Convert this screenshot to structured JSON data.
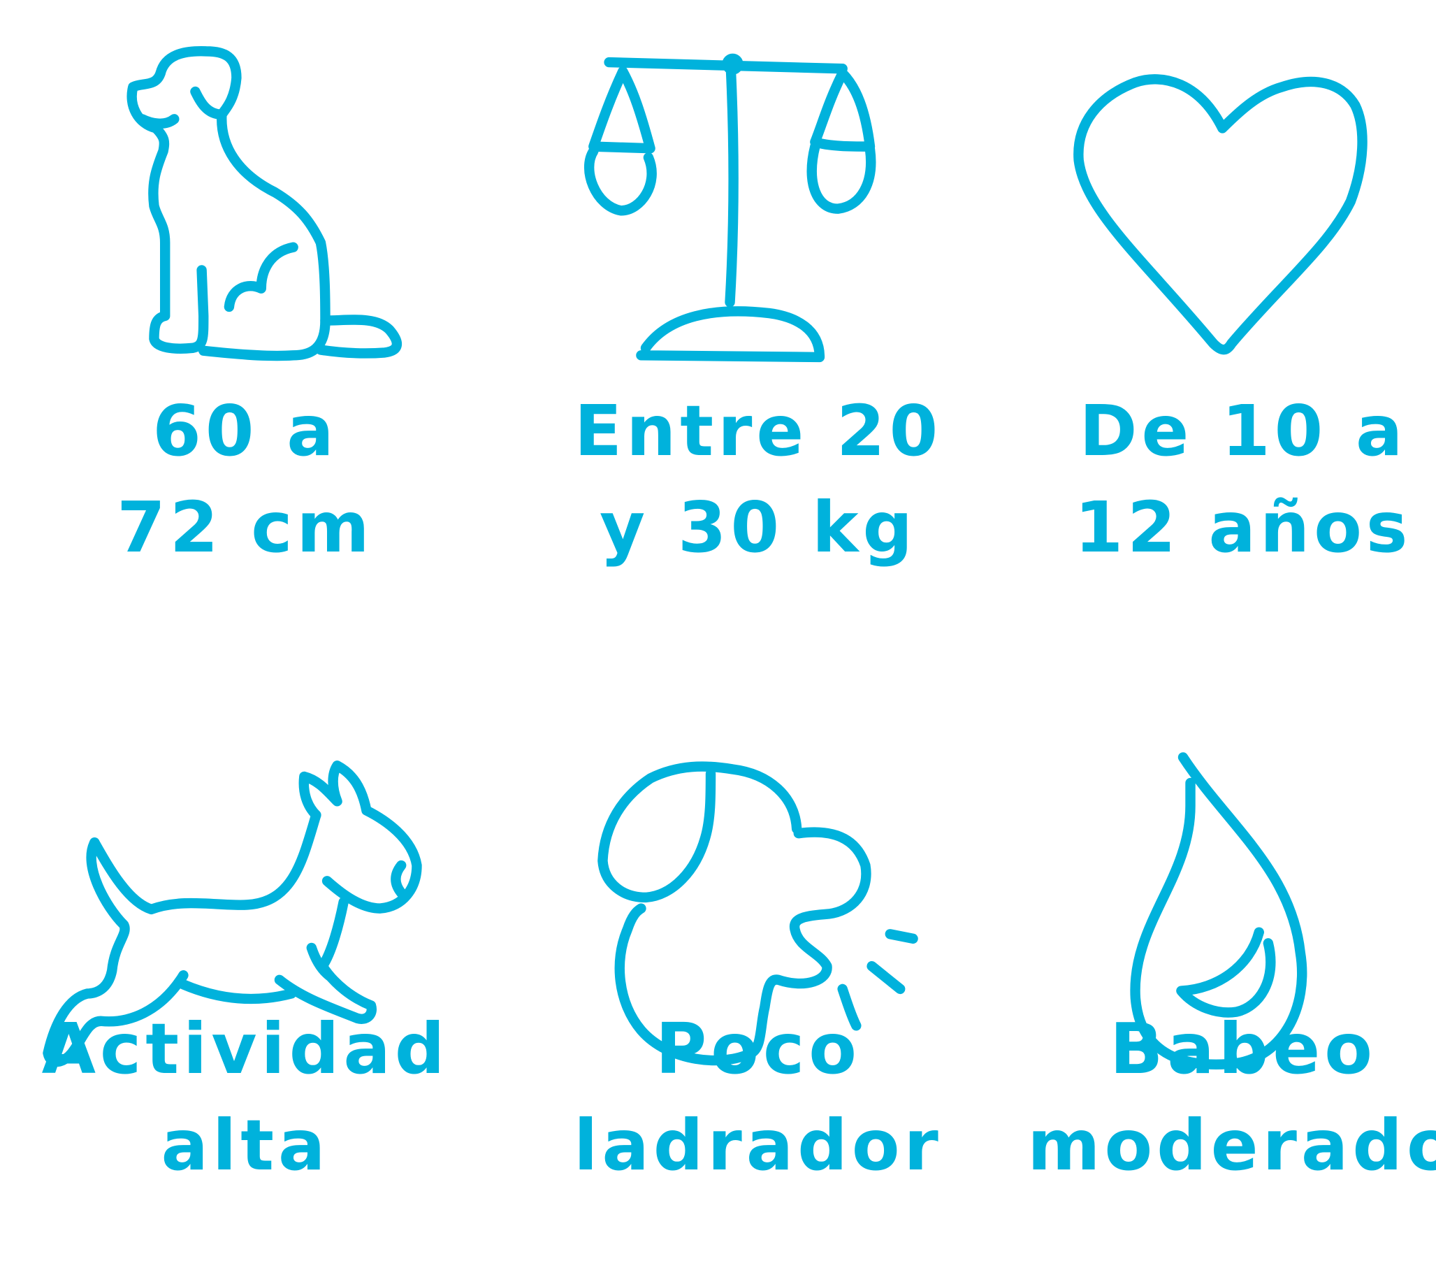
{
  "accent_color": "#00b2dc",
  "items": [
    {
      "icon": "sitting-dog-icon",
      "line1": "60 a",
      "line2": "72 cm"
    },
    {
      "icon": "scale-icon",
      "line1": "Entre 20",
      "line2": "y 30 kg"
    },
    {
      "icon": "heart-icon",
      "line1": "De 10 a",
      "line2": "12 años"
    },
    {
      "icon": "running-dog-icon",
      "line1": "Actividad",
      "line2": "alta"
    },
    {
      "icon": "barking-dog-icon",
      "line1": "Poco",
      "line2": "ladrador"
    },
    {
      "icon": "drop-icon",
      "line1": "Babeo",
      "line2": "moderado"
    }
  ]
}
